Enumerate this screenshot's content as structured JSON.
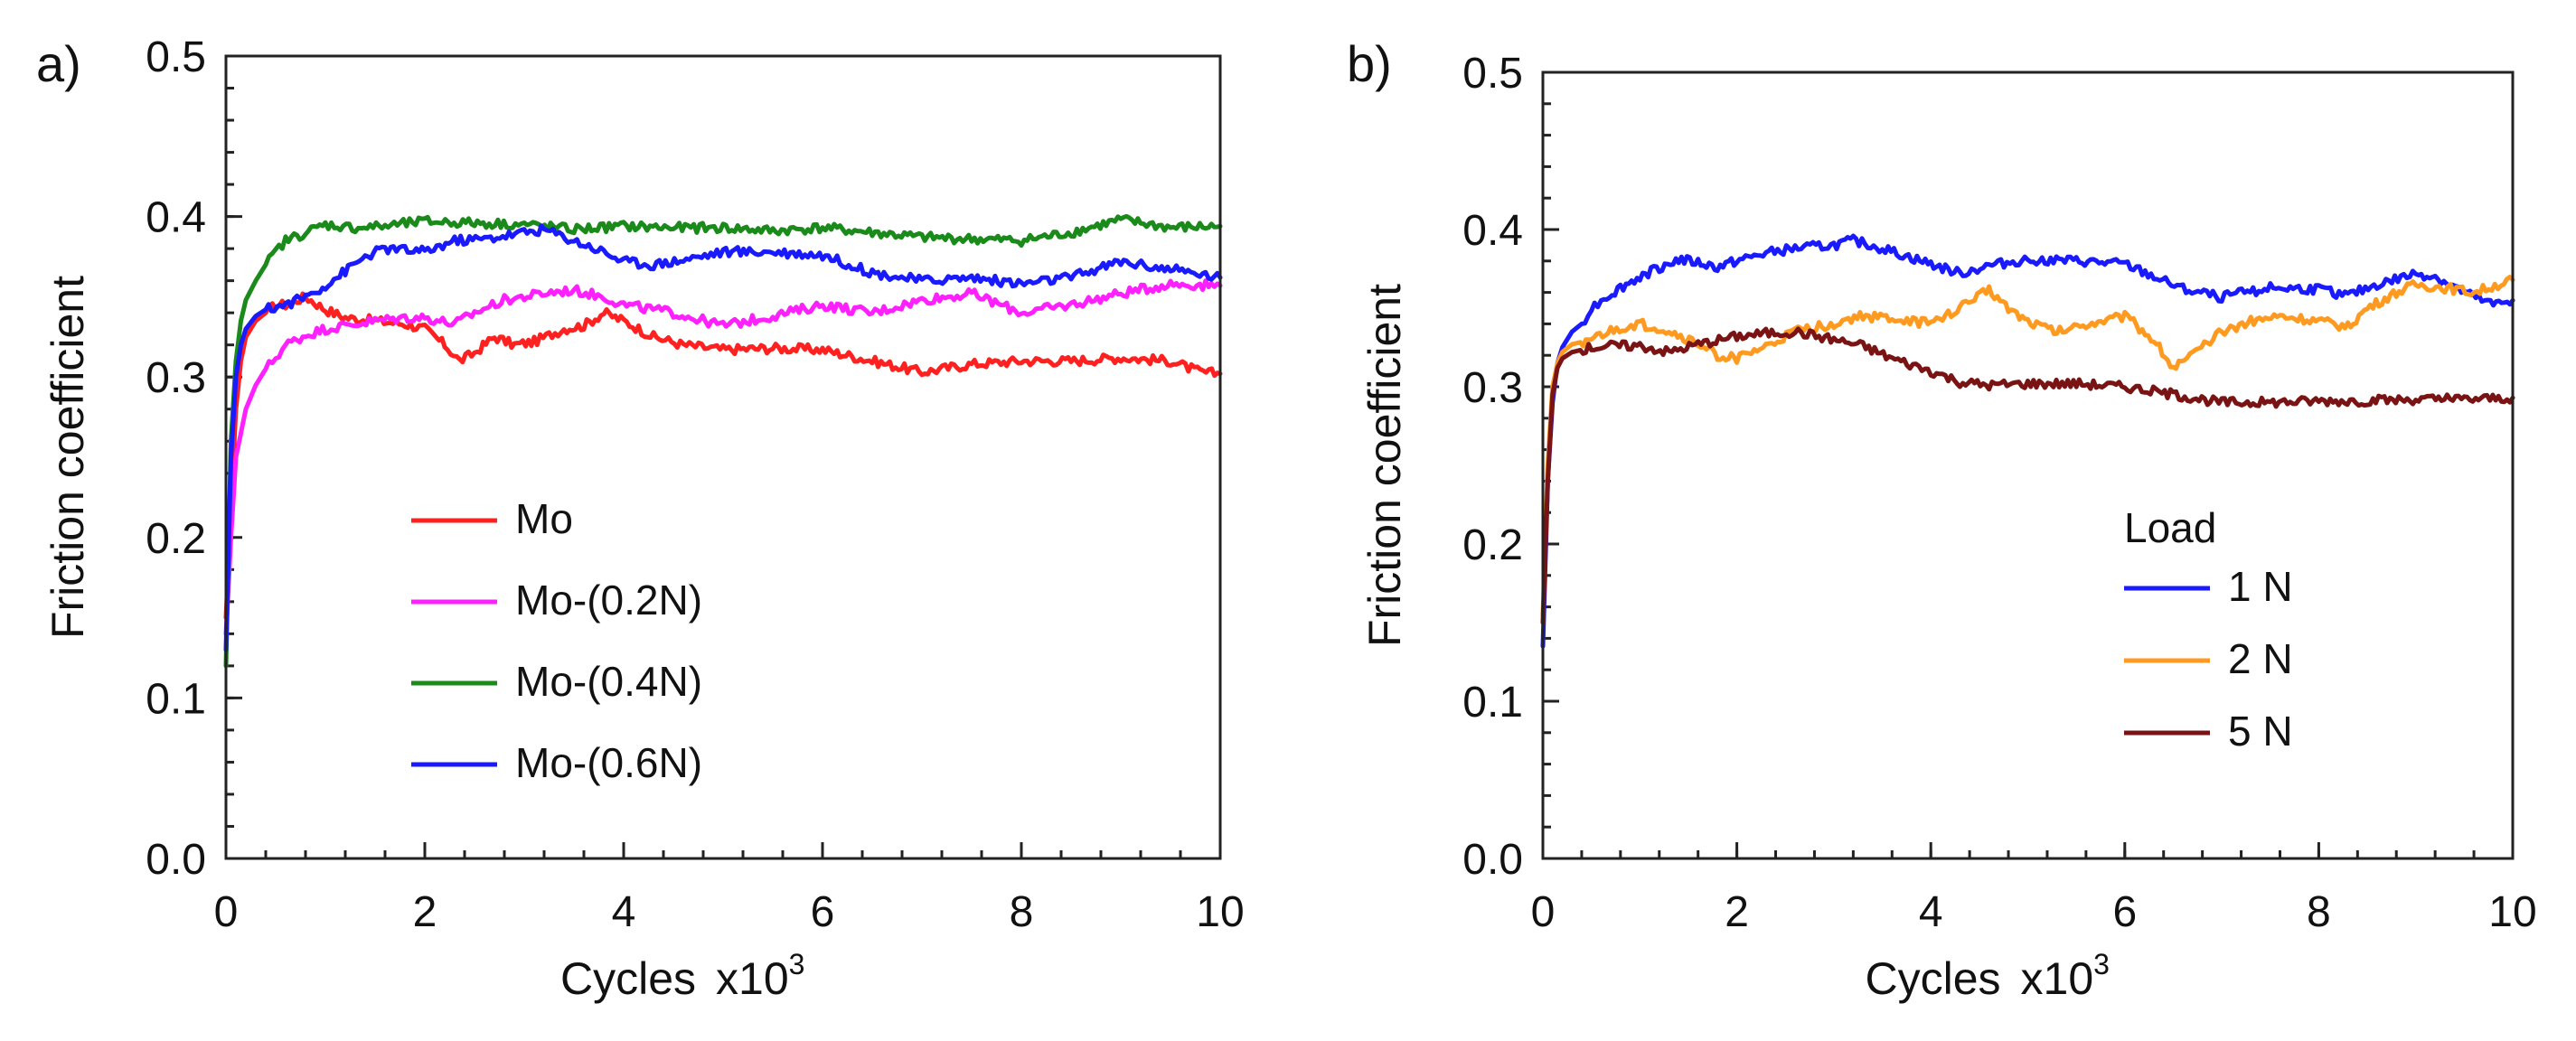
{
  "chart_data": [
    {
      "type": "line",
      "panel_label": "a)",
      "title": "",
      "xlabel": "Cycles",
      "xlabel_mult": "x10",
      "xlabel_exp": "3",
      "ylabel": "Friction coefficient",
      "xlim": [
        0,
        10
      ],
      "ylim": [
        0,
        0.5
      ],
      "xticks": [
        0,
        2,
        4,
        6,
        8,
        10
      ],
      "xtick_labels": [
        "0",
        "2",
        "4",
        "6",
        "8",
        "10"
      ],
      "yticks": [
        0,
        0.1,
        0.2,
        0.3,
        0.4,
        0.5
      ],
      "ytick_labels": [
        "0.0",
        "0.1",
        "0.2",
        "0.3",
        "0.4",
        "0.5"
      ],
      "legend_title": "",
      "legend_position": "lower-center",
      "series": [
        {
          "name": "Mo",
          "color": "#ff2020",
          "x": [
            0,
            0.05,
            0.1,
            0.15,
            0.2,
            0.3,
            0.4,
            0.5,
            0.6,
            0.8,
            1.0,
            1.2,
            1.5,
            1.8,
            2.0,
            2.2,
            2.35,
            2.5,
            2.7,
            2.9,
            3.1,
            3.4,
            3.6,
            3.8,
            4.0,
            4.3,
            4.6,
            5.0,
            5.5,
            6.0,
            6.5,
            7.0,
            7.5,
            8.0,
            8.5,
            9.0,
            9.5,
            9.8,
            10.0
          ],
          "values": [
            0.15,
            0.22,
            0.28,
            0.31,
            0.325,
            0.335,
            0.34,
            0.345,
            0.345,
            0.35,
            0.342,
            0.337,
            0.335,
            0.333,
            0.33,
            0.32,
            0.31,
            0.315,
            0.325,
            0.32,
            0.322,
            0.33,
            0.332,
            0.34,
            0.335,
            0.325,
            0.32,
            0.317,
            0.318,
            0.317,
            0.31,
            0.303,
            0.308,
            0.31,
            0.31,
            0.312,
            0.31,
            0.303,
            0.302
          ]
        },
        {
          "name": "Mo-(0.2N)",
          "color": "#ff20ff",
          "x": [
            0,
            0.05,
            0.1,
            0.2,
            0.3,
            0.4,
            0.5,
            0.6,
            0.8,
            1.0,
            1.2,
            1.5,
            1.8,
            2.0,
            2.3,
            2.5,
            2.8,
            3.0,
            3.3,
            3.5,
            3.8,
            4.0,
            4.5,
            5.0,
            5.5,
            6.0,
            6.5,
            7.0,
            7.5,
            8.0,
            8.5,
            9.0,
            9.5,
            10.0
          ],
          "values": [
            0.14,
            0.2,
            0.25,
            0.28,
            0.295,
            0.305,
            0.312,
            0.32,
            0.326,
            0.33,
            0.332,
            0.335,
            0.337,
            0.337,
            0.333,
            0.34,
            0.348,
            0.35,
            0.353,
            0.354,
            0.35,
            0.345,
            0.34,
            0.332,
            0.338,
            0.345,
            0.34,
            0.348,
            0.352,
            0.34,
            0.345,
            0.352,
            0.358,
            0.357
          ]
        },
        {
          "name": "Mo-(0.4N)",
          "color": "#1a8a1a",
          "x": [
            0,
            0.05,
            0.1,
            0.15,
            0.2,
            0.3,
            0.4,
            0.5,
            0.6,
            0.8,
            1.0,
            1.3,
            1.6,
            2.0,
            2.5,
            3.0,
            3.5,
            4.0,
            4.5,
            5.0,
            5.5,
            6.0,
            6.5,
            7.0,
            7.5,
            8.0,
            8.5,
            9.0,
            9.2,
            9.5,
            10.0
          ],
          "values": [
            0.12,
            0.26,
            0.31,
            0.335,
            0.348,
            0.36,
            0.37,
            0.378,
            0.385,
            0.39,
            0.395,
            0.393,
            0.394,
            0.397,
            0.396,
            0.395,
            0.392,
            0.394,
            0.393,
            0.393,
            0.391,
            0.393,
            0.39,
            0.387,
            0.386,
            0.385,
            0.39,
            0.398,
            0.396,
            0.393,
            0.394
          ]
        },
        {
          "name": "Mo-(0.6N)",
          "color": "#1a1aff",
          "x": [
            0,
            0.05,
            0.1,
            0.15,
            0.2,
            0.3,
            0.4,
            0.6,
            0.8,
            1.0,
            1.2,
            1.4,
            1.6,
            1.8,
            2.0,
            2.3,
            2.6,
            3.0,
            3.2,
            3.5,
            3.8,
            4.0,
            4.3,
            4.6,
            5.0,
            5.5,
            6.0,
            6.5,
            7.0,
            7.5,
            8.0,
            8.5,
            9.0,
            9.5,
            10.0
          ],
          "values": [
            0.13,
            0.25,
            0.3,
            0.32,
            0.33,
            0.338,
            0.342,
            0.345,
            0.35,
            0.357,
            0.366,
            0.375,
            0.38,
            0.379,
            0.378,
            0.385,
            0.386,
            0.39,
            0.392,
            0.385,
            0.378,
            0.372,
            0.37,
            0.373,
            0.378,
            0.378,
            0.376,
            0.365,
            0.36,
            0.362,
            0.358,
            0.362,
            0.372,
            0.367,
            0.362
          ]
        }
      ]
    },
    {
      "type": "line",
      "panel_label": "b)",
      "title": "",
      "xlabel": "Cycles",
      "xlabel_mult": "x10",
      "xlabel_exp": "3",
      "ylabel": "Friction coefficient",
      "xlim": [
        0,
        10
      ],
      "ylim": [
        0,
        0.5
      ],
      "xticks": [
        0,
        2,
        4,
        6,
        8,
        10
      ],
      "xtick_labels": [
        "0",
        "2",
        "4",
        "6",
        "8",
        "10"
      ],
      "yticks": [
        0,
        0.1,
        0.2,
        0.3,
        0.4,
        0.5
      ],
      "ytick_labels": [
        "0.0",
        "0.1",
        "0.2",
        "0.3",
        "0.4",
        "0.5"
      ],
      "legend_title": "Load",
      "legend_position": "lower-right",
      "series": [
        {
          "name": "1 N",
          "color": "#1a1aff",
          "x": [
            0,
            0.05,
            0.1,
            0.15,
            0.2,
            0.3,
            0.4,
            0.5,
            0.6,
            0.8,
            1.0,
            1.2,
            1.4,
            1.6,
            1.8,
            2.0,
            2.3,
            2.6,
            3.0,
            3.2,
            3.5,
            3.8,
            4.0,
            4.3,
            4.6,
            5.0,
            5.5,
            6.0,
            6.3,
            6.6,
            7.0,
            7.5,
            8.0,
            8.3,
            8.6,
            9.0,
            9.2,
            9.5,
            9.8,
            10.0
          ],
          "values": [
            0.135,
            0.24,
            0.29,
            0.315,
            0.325,
            0.335,
            0.34,
            0.35,
            0.355,
            0.363,
            0.37,
            0.376,
            0.381,
            0.379,
            0.376,
            0.38,
            0.385,
            0.388,
            0.39,
            0.393,
            0.388,
            0.382,
            0.378,
            0.372,
            0.377,
            0.381,
            0.38,
            0.378,
            0.37,
            0.362,
            0.357,
            0.363,
            0.362,
            0.358,
            0.365,
            0.372,
            0.37,
            0.36,
            0.352,
            0.355
          ]
        },
        {
          "name": "2 N",
          "color": "#ff9a20",
          "x": [
            0,
            0.05,
            0.1,
            0.15,
            0.2,
            0.3,
            0.5,
            0.7,
            1.0,
            1.3,
            1.6,
            1.8,
            2.0,
            2.3,
            2.6,
            3.0,
            3.3,
            3.6,
            4.0,
            4.3,
            4.6,
            4.8,
            5.0,
            5.3,
            5.6,
            6.0,
            6.3,
            6.5,
            6.7,
            7.0,
            7.3,
            7.6,
            8.0,
            8.3,
            8.5,
            8.8,
            9.0,
            9.3,
            9.6,
            10.0
          ],
          "values": [
            0.155,
            0.25,
            0.3,
            0.315,
            0.322,
            0.327,
            0.33,
            0.335,
            0.34,
            0.335,
            0.327,
            0.32,
            0.318,
            0.325,
            0.335,
            0.34,
            0.345,
            0.343,
            0.34,
            0.35,
            0.362,
            0.35,
            0.342,
            0.335,
            0.34,
            0.345,
            0.33,
            0.312,
            0.32,
            0.335,
            0.342,
            0.345,
            0.342,
            0.338,
            0.35,
            0.36,
            0.365,
            0.363,
            0.36,
            0.368
          ]
        },
        {
          "name": "5 N",
          "color": "#7a1414",
          "x": [
            0,
            0.05,
            0.1,
            0.15,
            0.2,
            0.3,
            0.5,
            0.7,
            1.0,
            1.3,
            1.6,
            2.0,
            2.3,
            2.6,
            3.0,
            3.3,
            3.6,
            4.0,
            4.3,
            4.6,
            5.0,
            5.5,
            6.0,
            6.5,
            7.0,
            7.5,
            8.0,
            8.5,
            9.0,
            9.5,
            10.0
          ],
          "values": [
            0.15,
            0.24,
            0.295,
            0.312,
            0.318,
            0.322,
            0.325,
            0.326,
            0.326,
            0.322,
            0.327,
            0.332,
            0.334,
            0.335,
            0.33,
            0.326,
            0.318,
            0.31,
            0.303,
            0.301,
            0.302,
            0.302,
            0.3,
            0.295,
            0.29,
            0.29,
            0.291,
            0.291,
            0.292,
            0.292,
            0.293
          ]
        }
      ]
    }
  ]
}
